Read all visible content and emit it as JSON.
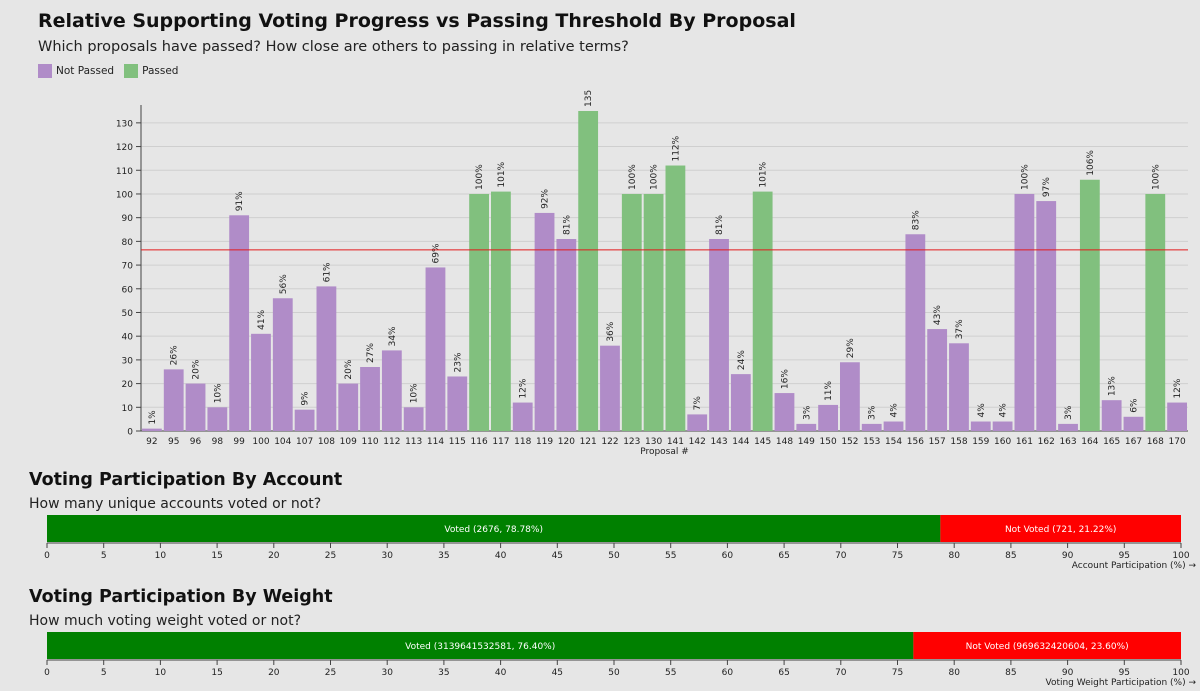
{
  "chart_data": [
    {
      "type": "bar",
      "title": "Relative Supporting Voting Progress vs Passing Threshold By Proposal",
      "subtitle": "Which proposals have passed? How close are others to passing in relative terms?",
      "xlabel": "Proposal #",
      "ylabel": "",
      "ylim": [
        0,
        135
      ],
      "yticks": [
        0,
        10,
        20,
        30,
        40,
        50,
        60,
        70,
        80,
        90,
        100,
        110,
        120,
        130
      ],
      "threshold": 76.4,
      "threshold_color": "#e31a1c",
      "legend": [
        {
          "label": "Not Passed",
          "color": "#b08cc8"
        },
        {
          "label": "Passed",
          "color": "#81c07e"
        }
      ],
      "categories": [
        "92",
        "95",
        "96",
        "98",
        "99",
        "100",
        "104",
        "107",
        "108",
        "109",
        "110",
        "112",
        "113",
        "114",
        "115",
        "116",
        "117",
        "118",
        "119",
        "120",
        "121",
        "122",
        "123",
        "130",
        "141",
        "142",
        "143",
        "144",
        "145",
        "148",
        "149",
        "150",
        "152",
        "153",
        "154",
        "156",
        "157",
        "158",
        "159",
        "160",
        "161",
        "162",
        "163",
        "164",
        "165",
        "167",
        "168",
        "170"
      ],
      "values": [
        1,
        26,
        20,
        10,
        91,
        41,
        56,
        9,
        61,
        20,
        27,
        34,
        10,
        69,
        23,
        100,
        101,
        12,
        92,
        81,
        135,
        36,
        100,
        100,
        112,
        7,
        81,
        24,
        101,
        16,
        3,
        11,
        29,
        3,
        4,
        83,
        43,
        37,
        4,
        4,
        100,
        97,
        3,
        106,
        13,
        6,
        100,
        12
      ],
      "labels": [
        "1%",
        "26%",
        "20%",
        "10%",
        "91%",
        "41%",
        "56%",
        "9%",
        "61%",
        "20%",
        "27%",
        "34%",
        "10%",
        "69%",
        "23%",
        "100%",
        "101%",
        "12%",
        "92%",
        "81%",
        "135",
        "36%",
        "100%",
        "100%",
        "112%",
        "7%",
        "81%",
        "24%",
        "101%",
        "16%",
        "3%",
        "11%",
        "29%",
        "3%",
        "4%",
        "83%",
        "43%",
        "37%",
        "4%",
        "4%",
        "100%",
        "97%",
        "3%",
        "106%",
        "13%",
        "6%",
        "100%",
        "12%"
      ],
      "passed": [
        false,
        false,
        false,
        false,
        false,
        false,
        false,
        false,
        false,
        false,
        false,
        false,
        false,
        false,
        false,
        true,
        true,
        false,
        false,
        false,
        true,
        false,
        true,
        true,
        true,
        false,
        false,
        false,
        true,
        false,
        false,
        false,
        false,
        false,
        false,
        false,
        false,
        false,
        false,
        false,
        false,
        false,
        false,
        true,
        false,
        false,
        true,
        false
      ]
    },
    {
      "type": "stacked-bar",
      "title": "Voting Participation By Account",
      "subtitle": "How many unique accounts voted or not?",
      "xlabel": "Account Participation (%) →",
      "xlim": [
        0,
        100
      ],
      "xticks": [
        0,
        5,
        10,
        15,
        20,
        25,
        30,
        35,
        40,
        45,
        50,
        55,
        60,
        65,
        70,
        75,
        80,
        85,
        90,
        95,
        100
      ],
      "segments": [
        {
          "name": "Voted",
          "value": 78.78,
          "label": "Voted (2676, 78.78%)",
          "color": "#008000"
        },
        {
          "name": "Not Voted",
          "value": 21.22,
          "label": "Not Voted (721, 21.22%)",
          "color": "#ff0000"
        }
      ]
    },
    {
      "type": "stacked-bar",
      "title": "Voting Participation By Weight",
      "subtitle": "How much voting weight voted or not?",
      "xlabel": "Voting Weight Participation (%) →",
      "xlim": [
        0,
        100
      ],
      "xticks": [
        0,
        5,
        10,
        15,
        20,
        25,
        30,
        35,
        40,
        45,
        50,
        55,
        60,
        65,
        70,
        75,
        80,
        85,
        90,
        95,
        100
      ],
      "segments": [
        {
          "name": "Voted",
          "value": 76.4,
          "label": "Voted (3139641532581, 76.40%)",
          "color": "#008000"
        },
        {
          "name": "Not Voted",
          "value": 23.6,
          "label": "Not Voted (969632420604, 23.60%)",
          "color": "#ff0000"
        }
      ]
    }
  ]
}
